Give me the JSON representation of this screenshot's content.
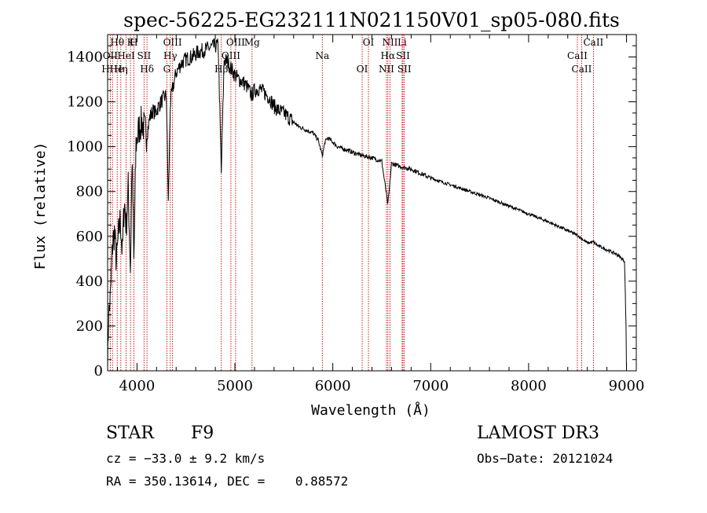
{
  "chart_data": {
    "type": "line",
    "title": "spec-56225-EG232111N021150V01_sp05-080.fits",
    "xlabel": "Wavelength (Å)",
    "ylabel": "Flux (relative)",
    "xlim": [
      3700,
      9100
    ],
    "ylim": [
      0,
      1500
    ],
    "xticks": [
      4000,
      5000,
      6000,
      7000,
      8000,
      9000
    ],
    "xtick_labels": [
      "4000",
      "5000",
      "6000",
      "7000",
      "8000",
      "9000"
    ],
    "yticks": [
      0,
      200,
      400,
      600,
      800,
      1000,
      1200,
      1400
    ],
    "ytick_labels": [
      "0",
      "200",
      "400",
      "600",
      "800",
      "1000",
      "1200",
      "1400"
    ],
    "series": [
      {
        "name": "flux",
        "x": [
          3700,
          3710,
          3730,
          3750,
          3770,
          3790,
          3810,
          3830,
          3850,
          3870,
          3890,
          3910,
          3933,
          3950,
          3968,
          3990,
          4020,
          4050,
          4101,
          4130,
          4160,
          4190,
          4220,
          4260,
          4300,
          4320,
          4340,
          4360,
          4400,
          4450,
          4500,
          4560,
          4620,
          4680,
          4740,
          4800,
          4830,
          4861,
          4890,
          4920,
          4960,
          5000,
          5040,
          5080,
          5120,
          5170,
          5200,
          5250,
          5300,
          5350,
          5400,
          5450,
          5500,
          5550,
          5600,
          5650,
          5700,
          5750,
          5800,
          5850,
          5893,
          5920,
          5950,
          6000,
          6050,
          6100,
          6150,
          6200,
          6300,
          6400,
          6500,
          6563,
          6600,
          6700,
          6800,
          6900,
          7000,
          7200,
          7400,
          7600,
          7800,
          8000,
          8200,
          8400,
          8498,
          8542,
          8600,
          8662,
          8700,
          8800,
          8900,
          8980,
          8995,
          9000
        ],
        "values": [
          20,
          240,
          330,
          560,
          620,
          480,
          600,
          680,
          520,
          760,
          640,
          820,
          450,
          950,
          480,
          1010,
          1080,
          1110,
          1050,
          1130,
          1160,
          1150,
          1180,
          1210,
          1230,
          750,
          1190,
          1250,
          1330,
          1370,
          1390,
          1400,
          1420,
          1430,
          1440,
          1450,
          1450,
          880,
          1390,
          1380,
          1350,
          1320,
          1300,
          1290,
          1270,
          1230,
          1250,
          1260,
          1240,
          1220,
          1180,
          1160,
          1150,
          1130,
          1110,
          1090,
          1080,
          1070,
          1060,
          1030,
          960,
          1020,
          1040,
          1020,
          1000,
          990,
          985,
          975,
          960,
          950,
          935,
          740,
          925,
          910,
          900,
          880,
          860,
          830,
          800,
          770,
          735,
          700,
          665,
          625,
          605,
          590,
          570,
          575,
          560,
          540,
          520,
          490,
          200,
          5
        ]
      }
    ],
    "lines": [
      {
        "label": "Hθ",
        "x": 3798
      },
      {
        "label": "OII",
        "x": 3727
      },
      {
        "label": "HHe",
        "x": 3750
      },
      {
        "label": "K",
        "x": 3934
      },
      {
        "label": "HeI",
        "x": 3889
      },
      {
        "label": "Hη",
        "x": 3835
      },
      {
        "label": "H",
        "x": 3968
      },
      {
        "label": "SII",
        "x": 4072
      },
      {
        "label": "Hδ",
        "x": 4102
      },
      {
        "label": "OIII",
        "x": 4363
      },
      {
        "label": "Hγ",
        "x": 4340
      },
      {
        "label": "G",
        "x": 4305
      },
      {
        "label": "OIII",
        "x": 5007
      },
      {
        "label": "OIII",
        "x": 4959
      },
      {
        "label": "Hβ",
        "x": 4861
      },
      {
        "label": "Mg",
        "x": 5175
      },
      {
        "label": "Na",
        "x": 5893
      },
      {
        "label": "OI",
        "x": 6300
      },
      {
        "label": "OI",
        "x": 6364
      },
      {
        "label": "Hα",
        "x": 6563
      },
      {
        "label": "NII",
        "x": 6548
      },
      {
        "label": "NII",
        "x": 6584
      },
      {
        "label": "SII",
        "x": 6717
      },
      {
        "label": "SII",
        "x": 6731
      },
      {
        "label": "Li",
        "x": 6708
      },
      {
        "label": "CaII",
        "x": 8498
      },
      {
        "label": "CaII",
        "x": 8542
      },
      {
        "label": "CaII",
        "x": 8662
      }
    ]
  },
  "info": {
    "class_label": "STAR",
    "subclass": "F9",
    "survey": "LAMOST DR3",
    "cz": "cz = −33.0 ± 9.2 km/s",
    "obs_date": "Obs−Date: 20121024",
    "coords": "RA = 350.13614, DEC =    0.88572"
  }
}
